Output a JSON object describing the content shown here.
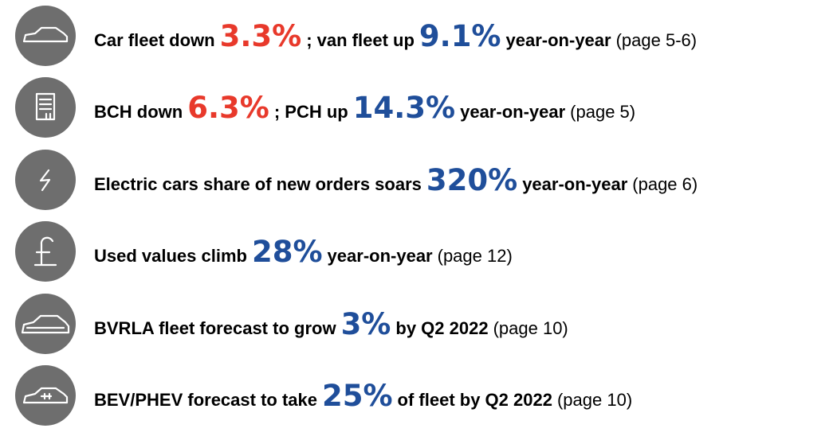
{
  "items": [
    {
      "parts": [
        "Car fleet down",
        "3.3%",
        "; van fleet up",
        "9.1%",
        "year-on-year",
        "(page 5-6)"
      ]
    },
    {
      "parts": [
        "BCH down",
        "6.3%",
        "; PCH up",
        "14.3%",
        "year-on-year",
        "(page 5)"
      ]
    },
    {
      "parts": [
        "Electric cars share of new orders soars",
        "320%",
        "year-on-year",
        "(page 6)"
      ]
    },
    {
      "parts": [
        "Used values climb",
        "28%",
        "year-on-year",
        "(page 12)"
      ]
    },
    {
      "parts": [
        "BVRLA fleet forecast to grow",
        "3%",
        "by Q2 2022",
        "(page 10)"
      ]
    },
    {
      "parts": [
        "BEV/PHEV forecast to take",
        "25%",
        "of fleet by Q2 2022",
        "(page 10)"
      ]
    }
  ]
}
